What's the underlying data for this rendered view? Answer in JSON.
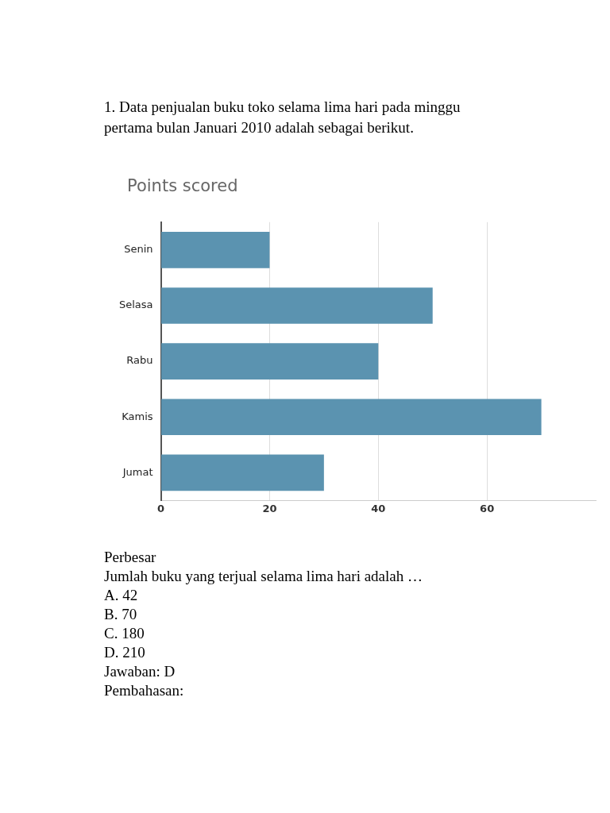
{
  "chart_data": {
    "type": "bar",
    "orientation": "horizontal",
    "title": "Points scored",
    "categories": [
      "Senin",
      "Selasa",
      "Rabu",
      "Kamis",
      "Jumat"
    ],
    "values": [
      20,
      50,
      40,
      70,
      30
    ],
    "color": "#5b93b0",
    "xlim": [
      0,
      80
    ],
    "xticks": [
      0,
      20,
      40,
      60
    ],
    "grid": "x",
    "annotations": [
      "1. Data penjualan buku toko selama lima hari pada minggu pertama bulan Januari 2010 adalah sebagai berikut.",
      "Perbesar",
      "Jumlah buku yang terjual selama lima hari adalah …",
      "A.  42",
      "B.  70",
      "C.  180",
      "D.  210",
      "Jawaban: D",
      "Pembahasan:"
    ]
  }
}
